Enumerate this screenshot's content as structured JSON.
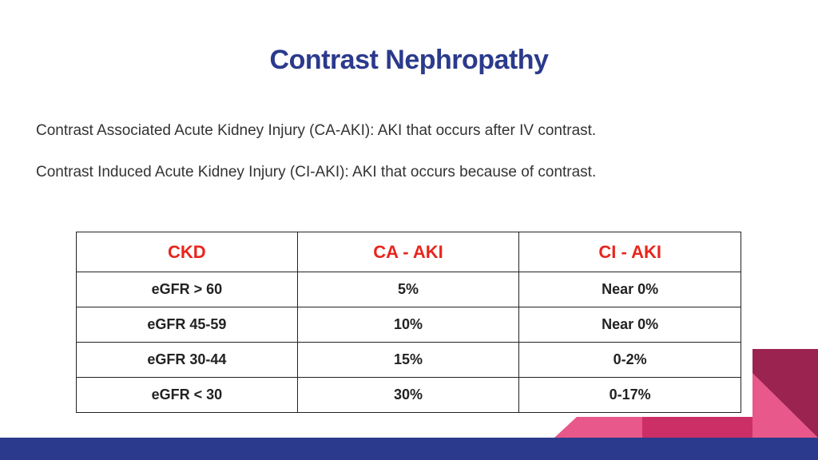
{
  "slide": {
    "title": "Contrast Nephropathy",
    "definitions": [
      "Contrast Associated Acute Kidney Injury (CA-AKI):  AKI that occurs after IV contrast.",
      "Contrast Induced Acute Kidney Injury (CI-AKI):  AKI that occurs because of contrast."
    ]
  },
  "table": {
    "headers": [
      "CKD",
      "CA - AKI",
      "CI - AKI"
    ],
    "rows": [
      [
        "eGFR > 60",
        "5%",
        "Near  0%"
      ],
      [
        "eGFR 45-59",
        "10%",
        "Near 0%"
      ],
      [
        "eGFR 30-44",
        "15%",
        "0-2%"
      ],
      [
        "eGFR < 30",
        "30%",
        "0-17%"
      ]
    ]
  },
  "colors": {
    "title": "#2b3a8c",
    "header_text": "#e8251c",
    "bar": "#2b3a8c",
    "pink": "#e8588a",
    "magenta": "#cc2f66",
    "maroon": "#9b2350"
  }
}
